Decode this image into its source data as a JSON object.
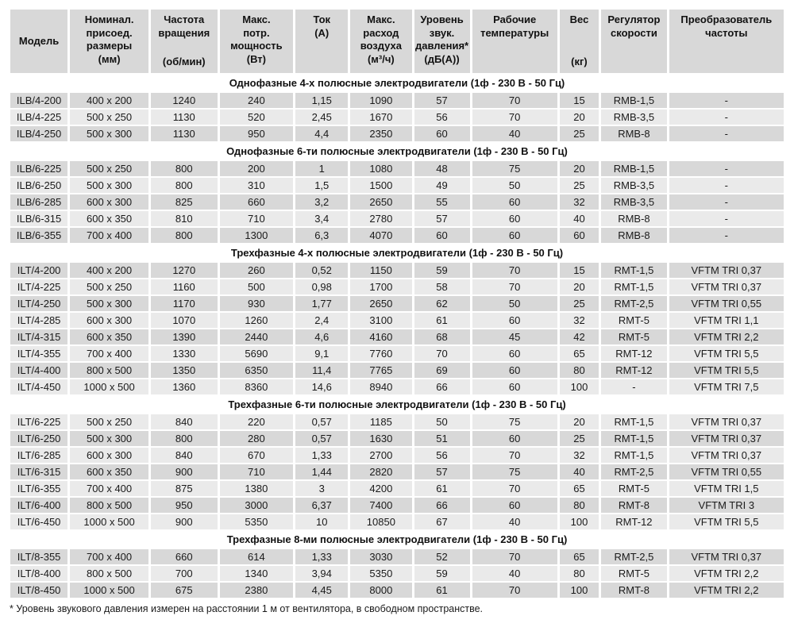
{
  "colors": {
    "row_dark": "#d8d8d8",
    "row_light": "#eaeaea",
    "background": "#ffffff",
    "text": "#1a1a1a"
  },
  "header": {
    "columns": [
      {
        "id": "model",
        "lines": [
          "Модель"
        ],
        "unit_bottom": null,
        "valign": "center"
      },
      {
        "id": "dimensions",
        "lines": [
          "Номинал.",
          "присоед.",
          "размеры",
          "(мм)"
        ],
        "unit_bottom": null,
        "valign": "top"
      },
      {
        "id": "speed",
        "lines": [
          "Частота",
          "вращения"
        ],
        "unit_bottom": "(об/мин)",
        "valign": "top"
      },
      {
        "id": "power",
        "lines": [
          "Макс.",
          "потр.",
          "мощность",
          "(Вт)"
        ],
        "unit_bottom": null,
        "valign": "top"
      },
      {
        "id": "current",
        "lines": [
          "Ток",
          "(А)"
        ],
        "unit_bottom": null,
        "valign": "top"
      },
      {
        "id": "airflow",
        "lines": [
          "Макс.",
          "расход",
          "воздуха",
          "(м³/ч)"
        ],
        "unit_bottom": null,
        "valign": "top"
      },
      {
        "id": "noise",
        "lines": [
          "Уровень",
          "звук.",
          "давления*",
          "(дБ(А))"
        ],
        "unit_bottom": null,
        "valign": "top"
      },
      {
        "id": "temperature",
        "lines": [
          "Рабочие",
          "температуры"
        ],
        "unit_bottom": null,
        "valign": "top"
      },
      {
        "id": "weight",
        "lines": [
          "Вес"
        ],
        "unit_bottom": "(кг)",
        "valign": "top"
      },
      {
        "id": "regulator",
        "lines": [
          "Регулятор",
          "скорости"
        ],
        "unit_bottom": null,
        "valign": "top"
      },
      {
        "id": "converter",
        "lines": [
          "Преобразователь",
          "частоты"
        ],
        "unit_bottom": null,
        "valign": "top"
      }
    ]
  },
  "sections": [
    {
      "title": "Однофазные 4-х полюсные электродвигатели (1ф - 230 В - 50 Гц)",
      "first_shade": "dark",
      "rows": [
        [
          "ILB/4-200",
          "400 x 200",
          "1240",
          "240",
          "1,15",
          "1090",
          "57",
          "70",
          "15",
          "RMB-1,5",
          "-"
        ],
        [
          "ILB/4-225",
          "500 x 250",
          "1130",
          "520",
          "2,45",
          "1670",
          "56",
          "70",
          "20",
          "RMB-3,5",
          "-"
        ],
        [
          "ILB/4-250",
          "500 x 300",
          "1130",
          "950",
          "4,4",
          "2350",
          "60",
          "40",
          "25",
          "RMB-8",
          "-"
        ]
      ]
    },
    {
      "title": "Однофазные 6-ти полюсные электродвигатели (1ф - 230 В - 50 Гц)",
      "first_shade": "dark",
      "rows": [
        [
          "ILB/6-225",
          "500 x 250",
          "800",
          "200",
          "1",
          "1080",
          "48",
          "75",
          "20",
          "RMB-1,5",
          "-"
        ],
        [
          "ILB/6-250",
          "500 x 300",
          "800",
          "310",
          "1,5",
          "1500",
          "49",
          "50",
          "25",
          "RMB-3,5",
          "-"
        ],
        [
          "ILB/6-285",
          "600 x 300",
          "825",
          "660",
          "3,2",
          "2650",
          "55",
          "60",
          "32",
          "RMB-3,5",
          "-"
        ],
        [
          "ILB/6-315",
          "600 x 350",
          "810",
          "710",
          "3,4",
          "2780",
          "57",
          "60",
          "40",
          "RMB-8",
          "-"
        ],
        [
          "ILB/6-355",
          "700 x 400",
          "800",
          "1300",
          "6,3",
          "4070",
          "60",
          "60",
          "60",
          "RMB-8",
          "-"
        ]
      ]
    },
    {
      "title": "Трехфазные 4-х полюсные электродвигатели (1ф - 230 В - 50 Гц)",
      "first_shade": "dark",
      "rows": [
        [
          "ILT/4-200",
          "400 x 200",
          "1270",
          "260",
          "0,52",
          "1150",
          "59",
          "70",
          "15",
          "RMT-1,5",
          "VFTM TRI 0,37"
        ],
        [
          "ILT/4-225",
          "500 x 250",
          "1160",
          "500",
          "0,98",
          "1700",
          "58",
          "70",
          "20",
          "RMT-1,5",
          "VFTM TRI 0,37"
        ],
        [
          "ILT/4-250",
          "500 x 300",
          "1170",
          "930",
          "1,77",
          "2650",
          "62",
          "50",
          "25",
          "RMT-2,5",
          "VFTM TRI 0,55"
        ],
        [
          "ILT/4-285",
          "600 x 300",
          "1070",
          "1260",
          "2,4",
          "3100",
          "61",
          "60",
          "32",
          "RMT-5",
          "VFTM TRI 1,1"
        ],
        [
          "ILT/4-315",
          "600 x 350",
          "1390",
          "2440",
          "4,6",
          "4160",
          "68",
          "45",
          "42",
          "RMT-5",
          "VFTM TRI 2,2"
        ],
        [
          "ILT/4-355",
          "700 x 400",
          "1330",
          "5690",
          "9,1",
          "7760",
          "70",
          "60",
          "65",
          "RMT-12",
          "VFTM TRI 5,5"
        ],
        [
          "ILT/4-400",
          "800 x 500",
          "1350",
          "6350",
          "11,4",
          "7765",
          "69",
          "60",
          "80",
          "RMT-12",
          "VFTM TRI 5,5"
        ],
        [
          "ILT/4-450",
          "1000 x 500",
          "1360",
          "8360",
          "14,6",
          "8940",
          "66",
          "60",
          "100",
          "-",
          "VFTM TRI 7,5"
        ]
      ]
    },
    {
      "title": "Трехфазные 6-ти полюсные электродвигатели (1ф - 230 В - 50 Гц)",
      "first_shade": "light",
      "rows": [
        [
          "ILT/6-225",
          "500 x 250",
          "840",
          "220",
          "0,57",
          "1185",
          "50",
          "75",
          "20",
          "RMT-1,5",
          "VFTM TRI 0,37"
        ],
        [
          "ILT/6-250",
          "500 x 300",
          "800",
          "280",
          "0,57",
          "1630",
          "51",
          "60",
          "25",
          "RMT-1,5",
          "VFTM TRI 0,37"
        ],
        [
          "ILT/6-285",
          "600 x 300",
          "840",
          "670",
          "1,33",
          "2700",
          "56",
          "70",
          "32",
          "RMT-1,5",
          "VFTM TRI 0,37"
        ],
        [
          "ILT/6-315",
          "600 x 350",
          "900",
          "710",
          "1,44",
          "2820",
          "57",
          "75",
          "40",
          "RMT-2,5",
          "VFTM TRI 0,55"
        ],
        [
          "ILT/6-355",
          "700 x 400",
          "875",
          "1380",
          "3",
          "4200",
          "61",
          "70",
          "65",
          "RMT-5",
          "VFTM TRI 1,5"
        ],
        [
          "ILT/6-400",
          "800 x 500",
          "950",
          "3000",
          "6,37",
          "7400",
          "66",
          "60",
          "80",
          "RMT-8",
          "VFTM TRI 3"
        ],
        [
          "ILT/6-450",
          "1000 x 500",
          "900",
          "5350",
          "10",
          "10850",
          "67",
          "40",
          "100",
          "RMT-12",
          "VFTM TRI 5,5"
        ]
      ]
    },
    {
      "title": "Трехфазные 8-ми полюсные электродвигатели (1ф - 230 В - 50 Гц)",
      "first_shade": "dark",
      "rows": [
        [
          "ILT/8-355",
          "700 x 400",
          "660",
          "614",
          "1,33",
          "3030",
          "52",
          "70",
          "65",
          "RMT-2,5",
          "VFTM TRI 0,37"
        ],
        [
          "ILT/8-400",
          "800 x 500",
          "700",
          "1340",
          "3,94",
          "5350",
          "59",
          "40",
          "80",
          "RMT-5",
          "VFTM TRI 2,2"
        ],
        [
          "ILT/8-450",
          "1000 x 500",
          "675",
          "2380",
          "4,45",
          "8000",
          "61",
          "70",
          "100",
          "RMT-8",
          "VFTM TRI 2,2"
        ]
      ]
    }
  ],
  "footnote": "* Уровень звукового давления измерен на расстоянии 1 м от вентилятора, в свободном пространстве."
}
